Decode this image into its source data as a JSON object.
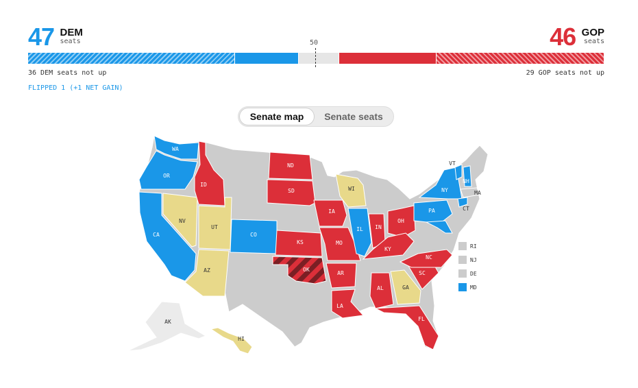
{
  "colors": {
    "dem": "#1a97e8",
    "gop": "#dc2f39",
    "gop_flip": "#7b1f24",
    "tossup": "#e8d98a",
    "no_race": "#cccccc",
    "alaska": "#ebebeb"
  },
  "header": {
    "dem": {
      "count": "47",
      "party": "DEM",
      "label": "seats"
    },
    "gop": {
      "count": "46",
      "party": "GOP",
      "label": "seats"
    },
    "majority_mark": "50"
  },
  "seat_bar": {
    "total_seats": 100,
    "dem_not_up": 36,
    "dem_won": 11,
    "uncalled": 7,
    "gop_won": 17,
    "gop_not_up": 29
  },
  "notes": {
    "dem_not_up": "36 DEM seats not up",
    "gop_not_up": "29 GOP seats not up",
    "flipped": "FLIPPED 1 (+1 NET GAIN)"
  },
  "tabs": {
    "map": "Senate map",
    "seats": "Senate seats"
  },
  "map": {
    "states": {
      "WA": {
        "label": "WA",
        "status": "dem"
      },
      "OR": {
        "label": "OR",
        "status": "dem"
      },
      "CA": {
        "label": "CA",
        "status": "dem"
      },
      "NV": {
        "label": "NV",
        "status": "tossup"
      },
      "ID": {
        "label": "ID",
        "status": "gop"
      },
      "UT": {
        "label": "UT",
        "status": "tossup"
      },
      "AZ": {
        "label": "AZ",
        "status": "tossup"
      },
      "CO": {
        "label": "CO",
        "status": "dem"
      },
      "ND": {
        "label": "ND",
        "status": "gop"
      },
      "SD": {
        "label": "SD",
        "status": "gop"
      },
      "KS": {
        "label": "KS",
        "status": "gop"
      },
      "OK": {
        "label": "OK",
        "status": "gop_flip"
      },
      "IA": {
        "label": "IA",
        "status": "gop"
      },
      "MO": {
        "label": "MO",
        "status": "gop"
      },
      "AR": {
        "label": "AR",
        "status": "gop"
      },
      "LA": {
        "label": "LA",
        "status": "gop"
      },
      "WI": {
        "label": "WI",
        "status": "tossup"
      },
      "IL": {
        "label": "IL",
        "status": "dem"
      },
      "IN": {
        "label": "IN",
        "status": "gop"
      },
      "OH": {
        "label": "OH",
        "status": "gop"
      },
      "KY": {
        "label": "KY",
        "status": "gop"
      },
      "AL": {
        "label": "AL",
        "status": "gop"
      },
      "GA": {
        "label": "GA",
        "status": "tossup"
      },
      "FL": {
        "label": "FL",
        "status": "gop"
      },
      "SC": {
        "label": "SC",
        "status": "gop"
      },
      "NC": {
        "label": "NC",
        "status": "gop"
      },
      "PA": {
        "label": "PA",
        "status": "dem"
      },
      "NY": {
        "label": "NY",
        "status": "dem"
      },
      "VT": {
        "label": "VT",
        "status": "dem"
      },
      "NH": {
        "label": "NH",
        "status": "dem"
      },
      "MA": {
        "label": "MA",
        "status": "no_race"
      },
      "CT": {
        "label": "CT",
        "status": "dem"
      },
      "MD": {
        "label": "MD",
        "status": "dem"
      },
      "AK": {
        "label": "AK",
        "status": "alaska"
      },
      "HI": {
        "label": "HI",
        "status": "tossup"
      }
    },
    "small_states": [
      {
        "label": "RI",
        "status": "no_race"
      },
      {
        "label": "NJ",
        "status": "no_race"
      },
      {
        "label": "DE",
        "status": "no_race"
      },
      {
        "label": "MD",
        "status": "dem"
      }
    ]
  }
}
